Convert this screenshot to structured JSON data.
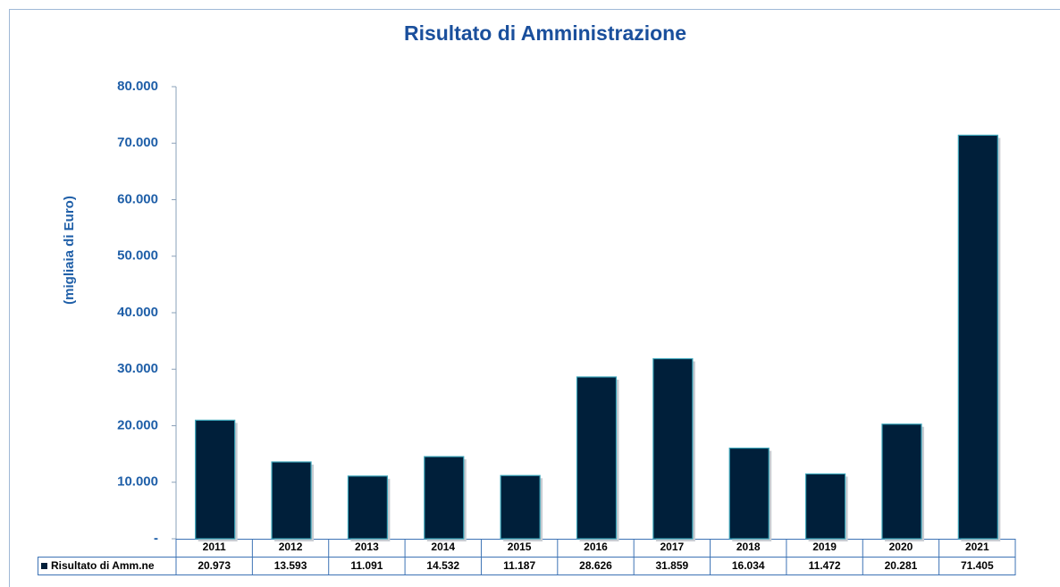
{
  "chart_data": {
    "type": "bar",
    "title": "Risultato di Amministrazione",
    "y_label": "(migliaia di Euro)",
    "categories": [
      "2011",
      "2012",
      "2013",
      "2014",
      "2015",
      "2016",
      "2017",
      "2018",
      "2019",
      "2020",
      "2021"
    ],
    "series": [
      {
        "name": "Risultato di Amm.ne",
        "color": "#001f3a",
        "values": [
          20973,
          13593,
          11091,
          14532,
          11187,
          28626,
          31859,
          16034,
          11472,
          20281,
          71405
        ],
        "value_labels": [
          "20.973",
          "13.593",
          "11.091",
          "14.532",
          "11.187",
          "28.626",
          "31.859",
          "16.034",
          "11.472",
          "20.281",
          "71.405"
        ]
      }
    ],
    "ylim": [
      0,
      80000
    ],
    "yticks": [
      {
        "value": 0,
        "label": "-"
      },
      {
        "value": 10000,
        "label": "10.000"
      },
      {
        "value": 20000,
        "label": "20.000"
      },
      {
        "value": 30000,
        "label": "30.000"
      },
      {
        "value": 40000,
        "label": "40.000"
      },
      {
        "value": 50000,
        "label": "50.000"
      },
      {
        "value": 60000,
        "label": "60.000"
      },
      {
        "value": 70000,
        "label": "70.000"
      },
      {
        "value": 80000,
        "label": "80.000"
      }
    ]
  }
}
